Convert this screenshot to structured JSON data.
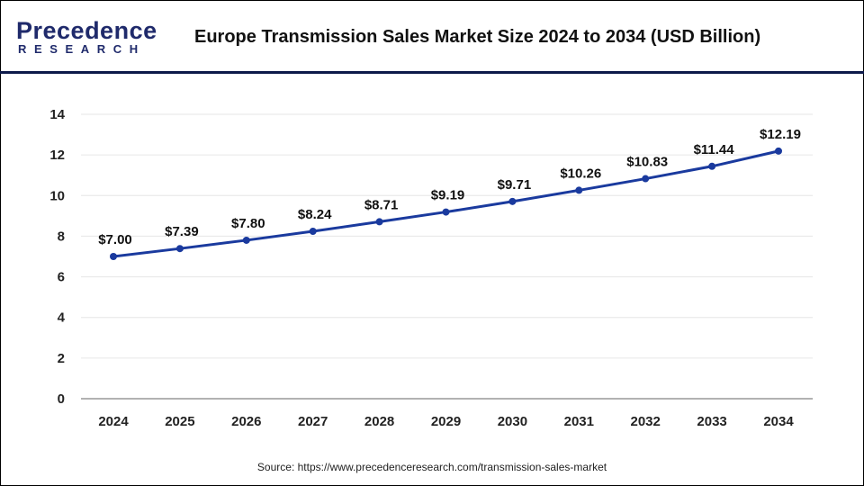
{
  "logo": {
    "line1": "Precedence",
    "line2": "RESEARCH"
  },
  "title": "Europe Transmission Sales Market Size 2024 to 2034 (USD Billion)",
  "source": "Source: https://www.precedenceresearch.com/transmission-sales-market",
  "colors": {
    "line": "#1a3a9e",
    "header_divider": "#0d1a4a"
  },
  "chart_data": {
    "type": "line",
    "title": "Europe Transmission Sales Market Size 2024 to 2034 (USD Billion)",
    "xlabel": "",
    "ylabel": "",
    "categories": [
      "2024",
      "2025",
      "2026",
      "2027",
      "2028",
      "2029",
      "2030",
      "2031",
      "2032",
      "2033",
      "2034"
    ],
    "values": [
      7.0,
      7.39,
      7.8,
      8.24,
      8.71,
      9.19,
      9.71,
      10.26,
      10.83,
      11.44,
      12.19
    ],
    "data_labels": [
      "$7.00",
      "$7.39",
      "$7.80",
      "$8.24",
      "$8.71",
      "$9.19",
      "$9.71",
      "$10.26",
      "$10.83",
      "$11.44",
      "$12.19"
    ],
    "ylim": [
      0,
      14
    ],
    "yticks": [
      0,
      2,
      4,
      6,
      8,
      10,
      12,
      14
    ],
    "grid": true,
    "legend": "none"
  }
}
